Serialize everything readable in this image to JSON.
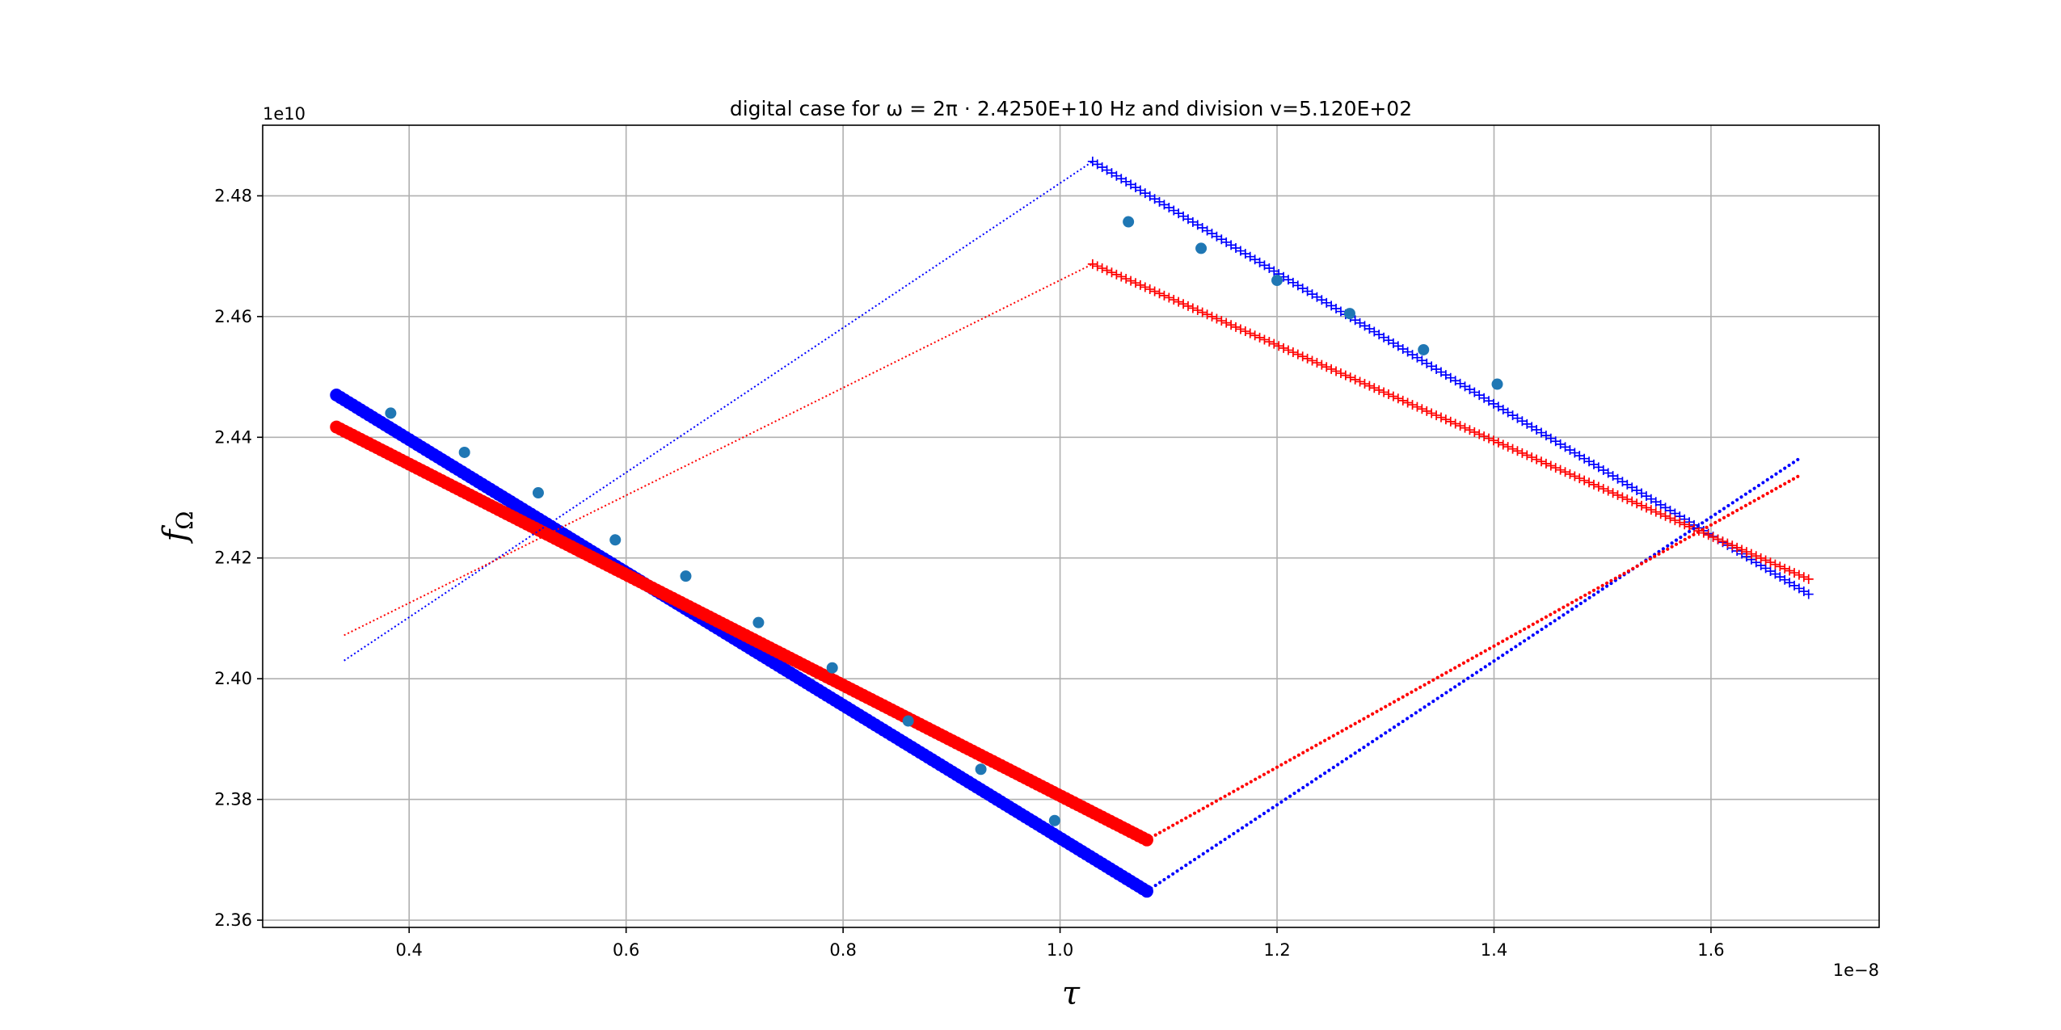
{
  "chart_data": {
    "type": "scatter",
    "title": "digital case for ω = 2π · 2.4250E+10 Hz and division v=5.120E+02",
    "xlabel": "τ",
    "ylabel_main": "f",
    "ylabel_sub": "Ω",
    "x_offset_label": "1e−8",
    "y_offset_label": "1e10",
    "x_scale": 1e-08,
    "y_scale": 10000000000.0,
    "xlim": [
      0.265,
      1.755
    ],
    "ylim": [
      2.3588,
      2.4917
    ],
    "xticks": [
      0.4,
      0.6,
      0.8,
      1.0,
      1.2,
      1.4,
      1.6
    ],
    "xtick_labels": [
      "0.4",
      "0.6",
      "0.8",
      "1.0",
      "1.2",
      "1.4",
      "1.6"
    ],
    "yticks": [
      2.36,
      2.38,
      2.4,
      2.42,
      2.44,
      2.46,
      2.48
    ],
    "ytick_labels": [
      "2.36",
      "2.38",
      "2.40",
      "2.42",
      "2.44",
      "2.46",
      "2.48"
    ],
    "grid": true,
    "colors": {
      "blue": "#0000ff",
      "red": "#ff0000",
      "measured": "#1f77b4",
      "grid": "#b0b0b0"
    },
    "series": [
      {
        "style": "big-dots",
        "color": "blue",
        "from": [
          0.333,
          2.447
        ],
        "to": [
          1.08,
          2.3648
        ]
      },
      {
        "style": "big-dots",
        "color": "red",
        "from": [
          0.333,
          2.4417
        ],
        "to": [
          1.08,
          2.3733
        ]
      },
      {
        "style": "plus",
        "color": "blue",
        "from": [
          1.03,
          2.4857
        ],
        "to": [
          1.69,
          2.414
        ]
      },
      {
        "style": "plus",
        "color": "red",
        "from": [
          1.03,
          2.4687
        ],
        "to": [
          1.69,
          2.4165
        ]
      },
      {
        "style": "small-dots",
        "color": "blue",
        "from": [
          1.08,
          2.3648
        ],
        "to": [
          1.68,
          2.4363
        ]
      },
      {
        "style": "small-dots",
        "color": "red",
        "from": [
          1.08,
          2.3733
        ],
        "to": [
          1.68,
          2.4335
        ]
      },
      {
        "style": "dotted-line",
        "color": "blue",
        "from": [
          0.34,
          2.403
        ],
        "to": [
          1.03,
          2.4857
        ]
      },
      {
        "style": "dotted-line",
        "color": "red",
        "from": [
          0.34,
          2.4072
        ],
        "to": [
          1.03,
          2.4687
        ]
      },
      {
        "style": "measured-points",
        "color": "measured",
        "x": [
          0.383,
          0.451,
          0.519,
          0.59,
          0.655,
          0.722,
          0.79,
          0.86,
          0.927,
          0.995,
          1.063,
          1.13,
          1.2,
          1.267,
          1.335,
          1.403
        ],
        "y": [
          2.444,
          2.4375,
          2.4308,
          2.423,
          2.417,
          2.4093,
          2.4018,
          2.393,
          2.385,
          2.3765,
          2.4757,
          2.4713,
          2.466,
          2.4605,
          2.4545,
          2.4488
        ]
      }
    ]
  }
}
